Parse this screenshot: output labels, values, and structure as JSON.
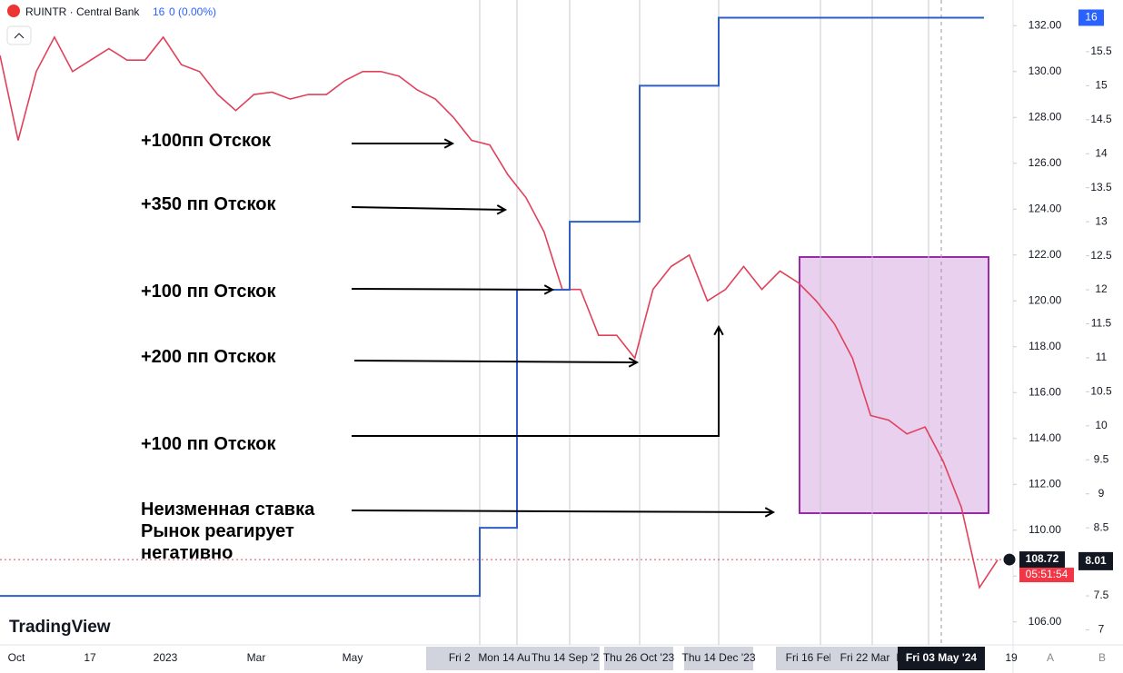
{
  "header": {
    "symbol": "RUINTR · Central Bank",
    "value": "16",
    "change": "0 (0.00%)"
  },
  "chart_data": {
    "type": "line",
    "series": [
      {
        "name": "RUINTR",
        "color": "#e0415a",
        "axis": "y",
        "values": [
          130.7,
          127,
          130,
          131.5,
          130,
          130.5,
          131,
          130.5,
          130.5,
          131.5,
          130.3,
          130,
          129,
          128.3,
          129,
          129.1,
          128.8,
          129,
          129,
          129.6,
          130,
          130,
          129.8,
          129.2,
          128.8,
          128,
          127,
          126.8,
          125.5,
          124.5,
          123,
          120.5,
          120.5,
          118.5,
          118.5,
          117.5,
          120.5,
          121.5,
          122,
          120,
          120.5,
          121.5,
          120.5,
          121.3,
          120.8,
          120,
          119,
          117.5,
          115,
          114.8,
          114.2,
          114.5,
          113,
          111,
          107.5,
          108.7
        ]
      },
      {
        "name": "Central Bank",
        "color": "#2f5fc4",
        "axis": "y2",
        "values": [
          7.5,
          8.5,
          12,
          13,
          15,
          16
        ]
      }
    ],
    "ylim": [
      105,
      133.12
    ],
    "yticks": [
      {
        "value": 106,
        "label": "106.00"
      },
      {
        "value": 108,
        "label": "108.00"
      },
      {
        "value": 110,
        "label": "110.00"
      },
      {
        "value": 112,
        "label": "112.00"
      },
      {
        "value": 114,
        "label": "114.00"
      },
      {
        "value": 116,
        "label": "116.00"
      },
      {
        "value": 118,
        "label": "118.00"
      },
      {
        "value": 120,
        "label": "120.00"
      },
      {
        "value": 122,
        "label": "122.00"
      },
      {
        "value": 124,
        "label": "124.00"
      },
      {
        "value": 126,
        "label": "126.00"
      },
      {
        "value": 128,
        "label": "128.00"
      },
      {
        "value": 130,
        "label": "130.00"
      },
      {
        "value": 132,
        "label": "132.00"
      }
    ],
    "y2lim": [
      6.78,
      16.26
    ],
    "y2ticks": [
      7,
      7.5,
      8,
      8.5,
      9,
      9.5,
      10,
      10.5,
      11,
      11.5,
      12,
      12.5,
      13,
      13.5,
      14,
      14.5,
      15,
      15.5
    ],
    "xlabels": [
      "Oct",
      "17",
      "2023",
      "Mar",
      "May",
      "Fri 2'",
      "Mon 14 Au",
      "Thu 14 Sep '2",
      "Thu 26 Oct '23",
      "Thu 14 Dec '23",
      "Fri 16 Feb",
      "Fri 22 Mar",
      "F",
      "Fri 03 May '24",
      "19"
    ],
    "last_price": {
      "value": 108.72,
      "label": "108.72"
    },
    "countdown": "05:51:54",
    "last_rate": {
      "value": 8.01,
      "label": "8.01"
    },
    "rate_tag": {
      "value": 16,
      "label": "16"
    },
    "annotations": [
      "+100пп Отскок",
      "+350 пп Отскок",
      "+100 пп Отскок",
      "+200 пп Отскок",
      "+100 пп Отскок",
      "Неизменная ставка\nРынок реагирует\nнегативно"
    ],
    "scale_buttons": [
      "A",
      "B"
    ],
    "logo": "TradingView"
  }
}
